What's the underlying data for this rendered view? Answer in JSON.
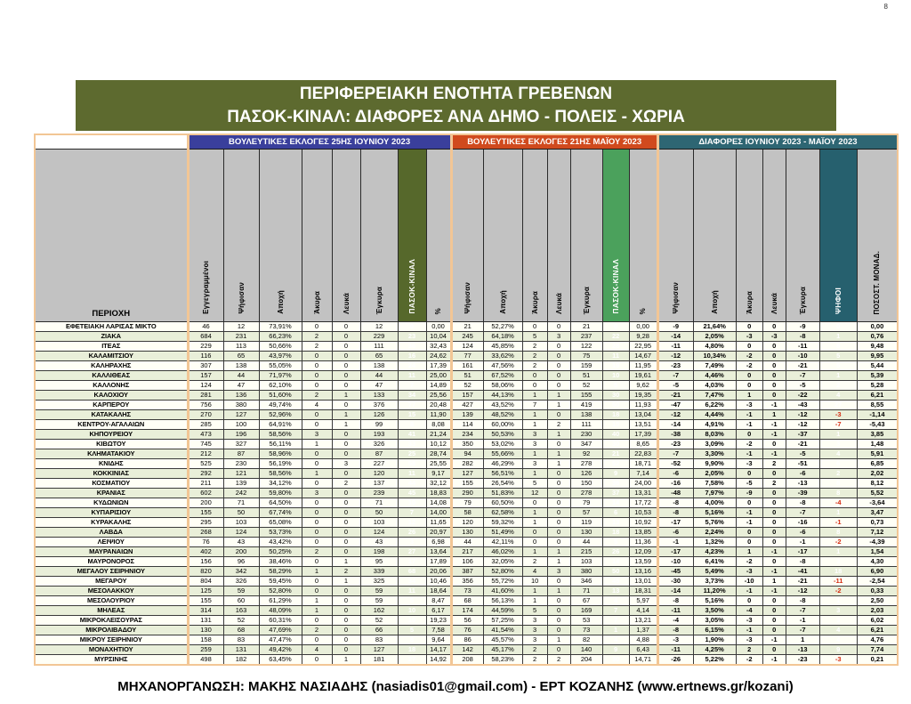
{
  "page": {
    "number": "8"
  },
  "title": {
    "line1": "ΠΕΡΙΦΕΡΕΙΑΚΗ ΕΝΟΤΗΤΑ ΓΡΕΒΕΝΩΝ",
    "line2": "ΠΑΣΟΚ-ΚΙΝΑΛ: ΔΙΑΦΟΡΕΣ ΑΝΑ ΔΗΜΟ - ΠΟΛΕΙΣ - ΧΩΡΙΑ"
  },
  "sections": {
    "june": "ΒΟΥΛΕΥΤΙΚΕΣ ΕΚΛΟΓΕΣ 25ΗΣ ΙΟΥΝΙΟΥ 2023",
    "may": "ΒΟΥΛΕΥΤΙΚΕΣ ΕΚΛΟΓΕΣ 21ΗΣ ΜΑΪΟΥ 2023",
    "diff": "ΔΙΑΦΟΡΕΣ ΙΟΥΝΙΟΥ 2023 - ΜΑΪΟΥ 2023"
  },
  "columns": {
    "area": "ΠΕΡΙΟΧΗ",
    "june": [
      "Εγγεγραμμένοι",
      "Ψήφισαν",
      "Αποχή",
      "Άκυρα",
      "Λευκά",
      "Έγκυρα",
      "ΠΑΣΟΚ-ΚΙΝΑΛ",
      "%"
    ],
    "may": [
      "Ψήφισαν",
      "Αποχή",
      "Άκυρα",
      "Λευκά",
      "Έγκυρα",
      "ΠΑΣΟΚ-ΚΙΝΑΛ",
      "%"
    ],
    "diff": [
      "Ψήφισαν",
      "Αποχή",
      "Άκυρα",
      "Λευκά",
      "Έγκυρα",
      "ΨΗΦΟΙ",
      "ΠΟΣΟΣΤ. ΜΟΝΑΔ."
    ]
  },
  "rows": [
    {
      "name": "ΕΦΕΤΕΙΑΚΗ ΛΑΡΙΣΑΣ ΜΙΚΤΟ",
      "june": [
        "46",
        "12",
        "73,91%",
        "0",
        "0",
        "12",
        "0",
        "0,00"
      ],
      "may": [
        "21",
        "52,27%",
        "0",
        "0",
        "21",
        "0",
        "0,00"
      ],
      "diff": [
        "-9",
        "21,64%",
        "0",
        "0",
        "-9",
        "0",
        "0,00"
      ]
    },
    {
      "name": "ΖΙΑΚΑ",
      "june": [
        "684",
        "231",
        "66,23%",
        "2",
        "0",
        "229",
        "23",
        "10,04"
      ],
      "may": [
        "245",
        "64,18%",
        "5",
        "3",
        "237",
        "22",
        "9,28"
      ],
      "diff": [
        "-14",
        "2,05%",
        "-3",
        "-3",
        "-8",
        "1",
        "0,76"
      ]
    },
    {
      "name": "ΙΤΕΑΣ",
      "june": [
        "229",
        "113",
        "50,66%",
        "2",
        "0",
        "111",
        "36",
        "32,43"
      ],
      "may": [
        "124",
        "45,85%",
        "2",
        "0",
        "122",
        "28",
        "22,95"
      ],
      "diff": [
        "-11",
        "4,80%",
        "0",
        "0",
        "-11",
        "8",
        "9,48"
      ]
    },
    {
      "name": "ΚΑΛΑΜΙΤΣΙΟΥ",
      "june": [
        "116",
        "65",
        "43,97%",
        "0",
        "0",
        "65",
        "16",
        "24,62"
      ],
      "may": [
        "77",
        "33,62%",
        "2",
        "0",
        "75",
        "11",
        "14,67"
      ],
      "diff": [
        "-12",
        "10,34%",
        "-2",
        "0",
        "-10",
        "5",
        "9,95"
      ]
    },
    {
      "name": "ΚΑΛΗΡΑΧΗΣ",
      "june": [
        "307",
        "138",
        "55,05%",
        "0",
        "0",
        "138",
        "24",
        "17,39"
      ],
      "may": [
        "161",
        "47,56%",
        "2",
        "0",
        "159",
        "19",
        "11,95"
      ],
      "diff": [
        "-23",
        "7,49%",
        "-2",
        "0",
        "-21",
        "5",
        "5,44"
      ]
    },
    {
      "name": "ΚΑΛΛΙΘΕΑΣ",
      "june": [
        "157",
        "44",
        "71,97%",
        "0",
        "0",
        "44",
        "11",
        "25,00"
      ],
      "may": [
        "51",
        "67,52%",
        "0",
        "0",
        "51",
        "10",
        "19,61"
      ],
      "diff": [
        "-7",
        "4,46%",
        "0",
        "0",
        "-7",
        "1",
        "5,39"
      ]
    },
    {
      "name": "ΚΑΛΛΟΝΗΣ",
      "june": [
        "124",
        "47",
        "62,10%",
        "0",
        "0",
        "47",
        "7",
        "14,89"
      ],
      "may": [
        "52",
        "58,06%",
        "0",
        "0",
        "52",
        "5",
        "9,62"
      ],
      "diff": [
        "-5",
        "4,03%",
        "0",
        "0",
        "-5",
        "2",
        "5,28"
      ]
    },
    {
      "name": "ΚΑΛΟΧΙΟΥ",
      "june": [
        "281",
        "136",
        "51,60%",
        "2",
        "1",
        "133",
        "34",
        "25,56"
      ],
      "may": [
        "157",
        "44,13%",
        "1",
        "1",
        "155",
        "30",
        "19,35"
      ],
      "diff": [
        "-21",
        "7,47%",
        "1",
        "0",
        "-22",
        "4",
        "6,21"
      ]
    },
    {
      "name": "ΚΑΡΠΕΡΟΥ",
      "june": [
        "756",
        "380",
        "49,74%",
        "4",
        "0",
        "376",
        "77",
        "20,48"
      ],
      "may": [
        "427",
        "43,52%",
        "7",
        "1",
        "419",
        "50",
        "11,93"
      ],
      "diff": [
        "-47",
        "6,22%",
        "-3",
        "-1",
        "-43",
        "27",
        "8,55"
      ]
    },
    {
      "name": "ΚΑΤΑΚΑΛΗΣ",
      "june": [
        "270",
        "127",
        "52,96%",
        "0",
        "1",
        "126",
        "15",
        "11,90"
      ],
      "may": [
        "139",
        "48,52%",
        "1",
        "0",
        "138",
        "18",
        "13,04"
      ],
      "diff": [
        "-12",
        "4,44%",
        "-1",
        "1",
        "-12",
        "-3",
        "-1,14"
      ]
    },
    {
      "name": "ΚΕΝΤΡΟΥ-ΑΓΑΛΑΙΩΝ",
      "june": [
        "285",
        "100",
        "64,91%",
        "0",
        "1",
        "99",
        "8",
        "8,08"
      ],
      "may": [
        "114",
        "60,00%",
        "1",
        "2",
        "111",
        "15",
        "13,51"
      ],
      "diff": [
        "-14",
        "4,91%",
        "-1",
        "-1",
        "-12",
        "-7",
        "-5,43"
      ]
    },
    {
      "name": "ΚΗΠΟΥΡΕΙΟΥ",
      "june": [
        "473",
        "196",
        "58,56%",
        "3",
        "0",
        "193",
        "41",
        "21,24"
      ],
      "may": [
        "234",
        "50,53%",
        "3",
        "1",
        "230",
        "40",
        "17,39"
      ],
      "diff": [
        "-38",
        "8,03%",
        "0",
        "-1",
        "-37",
        "1",
        "3,85"
      ]
    },
    {
      "name": "ΚΙΒΩΤΟΥ",
      "june": [
        "745",
        "327",
        "56,11%",
        "1",
        "0",
        "326",
        "33",
        "10,12"
      ],
      "may": [
        "350",
        "53,02%",
        "3",
        "0",
        "347",
        "30",
        "8,65"
      ],
      "diff": [
        "-23",
        "3,09%",
        "-2",
        "0",
        "-21",
        "3",
        "1,48"
      ]
    },
    {
      "name": "ΚΛΗΜΑΤΑΚΙΟΥ",
      "june": [
        "212",
        "87",
        "58,96%",
        "0",
        "0",
        "87",
        "25",
        "28,74"
      ],
      "may": [
        "94",
        "55,66%",
        "1",
        "1",
        "92",
        "21",
        "22,83"
      ],
      "diff": [
        "-7",
        "3,30%",
        "-1",
        "-1",
        "-5",
        "4",
        "5,91"
      ]
    },
    {
      "name": "ΚΝΙΔΗΣ",
      "june": [
        "525",
        "230",
        "56,19%",
        "0",
        "3",
        "227",
        "58",
        "25,55"
      ],
      "may": [
        "282",
        "46,29%",
        "3",
        "1",
        "278",
        "52",
        "18,71"
      ],
      "diff": [
        "-52",
        "9,90%",
        "-3",
        "2",
        "-51",
        "6",
        "6,85"
      ]
    },
    {
      "name": "ΚΟΚΚΙΝΙΑΣ",
      "june": [
        "292",
        "121",
        "58,56%",
        "1",
        "0",
        "120",
        "11",
        "9,17"
      ],
      "may": [
        "127",
        "56,51%",
        "1",
        "0",
        "126",
        "9",
        "7,14"
      ],
      "diff": [
        "-6",
        "2,05%",
        "0",
        "0",
        "-6",
        "2",
        "2,02"
      ]
    },
    {
      "name": "ΚΟΣΜΑΤΙΟΥ",
      "june": [
        "211",
        "139",
        "34,12%",
        "0",
        "2",
        "137",
        "44",
        "32,12"
      ],
      "may": [
        "155",
        "26,54%",
        "5",
        "0",
        "150",
        "36",
        "24,00"
      ],
      "diff": [
        "-16",
        "7,58%",
        "-5",
        "2",
        "-13",
        "8",
        "8,12"
      ]
    },
    {
      "name": "ΚΡΑΝΙΑΣ",
      "june": [
        "602",
        "242",
        "59,80%",
        "3",
        "0",
        "239",
        "45",
        "18,83"
      ],
      "may": [
        "290",
        "51,83%",
        "12",
        "0",
        "278",
        "37",
        "13,31"
      ],
      "diff": [
        "-48",
        "7,97%",
        "-9",
        "0",
        "-39",
        "8",
        "5,52"
      ]
    },
    {
      "name": "ΚΥΔΩΝΙΩΝ",
      "june": [
        "200",
        "71",
        "64,50%",
        "0",
        "0",
        "71",
        "10",
        "14,08"
      ],
      "may": [
        "79",
        "60,50%",
        "0",
        "0",
        "79",
        "14",
        "17,72"
      ],
      "diff": [
        "-8",
        "4,00%",
        "0",
        "0",
        "-8",
        "-4",
        "-3,64"
      ]
    },
    {
      "name": "ΚΥΠΑΡΙΣΙΟΥ",
      "june": [
        "155",
        "50",
        "67,74%",
        "0",
        "0",
        "50",
        "7",
        "14,00"
      ],
      "may": [
        "58",
        "62,58%",
        "1",
        "0",
        "57",
        "6",
        "10,53"
      ],
      "diff": [
        "-8",
        "5,16%",
        "-1",
        "0",
        "-7",
        "1",
        "3,47"
      ]
    },
    {
      "name": "ΚΥΡΑΚΑΛΗΣ",
      "june": [
        "295",
        "103",
        "65,08%",
        "0",
        "0",
        "103",
        "12",
        "11,65"
      ],
      "may": [
        "120",
        "59,32%",
        "1",
        "0",
        "119",
        "13",
        "10,92"
      ],
      "diff": [
        "-17",
        "5,76%",
        "-1",
        "0",
        "-16",
        "-1",
        "0,73"
      ]
    },
    {
      "name": "ΛΑΒΔΑ",
      "june": [
        "268",
        "124",
        "53,73%",
        "0",
        "0",
        "124",
        "26",
        "20,97"
      ],
      "may": [
        "130",
        "51,49%",
        "0",
        "0",
        "130",
        "18",
        "13,85"
      ],
      "diff": [
        "-6",
        "2,24%",
        "0",
        "0",
        "-6",
        "8",
        "7,12"
      ]
    },
    {
      "name": "ΛΕΙΨΙΟΥ",
      "june": [
        "76",
        "43",
        "43,42%",
        "0",
        "0",
        "43",
        "3",
        "6,98"
      ],
      "may": [
        "44",
        "42,11%",
        "0",
        "0",
        "44",
        "5",
        "11,36"
      ],
      "diff": [
        "-1",
        "1,32%",
        "0",
        "0",
        "-1",
        "-2",
        "-4,39"
      ]
    },
    {
      "name": "ΜΑΥΡΑΝΑΙΩΝ",
      "june": [
        "402",
        "200",
        "50,25%",
        "2",
        "0",
        "198",
        "27",
        "13,64"
      ],
      "may": [
        "217",
        "46,02%",
        "1",
        "1",
        "215",
        "26",
        "12,09"
      ],
      "diff": [
        "-17",
        "4,23%",
        "1",
        "-1",
        "-17",
        "1",
        "1,54"
      ]
    },
    {
      "name": "ΜΑΥΡΟΝΟΡΟΣ",
      "june": [
        "156",
        "96",
        "38,46%",
        "0",
        "1",
        "95",
        "17",
        "17,89"
      ],
      "may": [
        "106",
        "32,05%",
        "2",
        "1",
        "103",
        "14",
        "13,59"
      ],
      "diff": [
        "-10",
        "6,41%",
        "-2",
        "0",
        "-8",
        "3",
        "4,30"
      ]
    },
    {
      "name": "ΜΕΓΑΛΟΥ ΣΕΙΡΗΝΙΟΥ",
      "june": [
        "820",
        "342",
        "58,29%",
        "1",
        "2",
        "339",
        "68",
        "20,06"
      ],
      "may": [
        "387",
        "52,80%",
        "4",
        "3",
        "380",
        "50",
        "13,16"
      ],
      "diff": [
        "-45",
        "5,49%",
        "-3",
        "-1",
        "-41",
        "18",
        "6,90"
      ]
    },
    {
      "name": "ΜΕΓΑΡΟΥ",
      "june": [
        "804",
        "326",
        "59,45%",
        "0",
        "1",
        "325",
        "34",
        "10,46"
      ],
      "may": [
        "356",
        "55,72%",
        "10",
        "0",
        "346",
        "45",
        "13,01"
      ],
      "diff": [
        "-30",
        "3,73%",
        "-10",
        "1",
        "-21",
        "-11",
        "-2,54"
      ]
    },
    {
      "name": "ΜΕΣΟΛΑΚΚΟΥ",
      "june": [
        "125",
        "59",
        "52,80%",
        "0",
        "0",
        "59",
        "11",
        "18,64"
      ],
      "may": [
        "73",
        "41,60%",
        "1",
        "1",
        "71",
        "13",
        "18,31"
      ],
      "diff": [
        "-14",
        "11,20%",
        "-1",
        "-1",
        "-12",
        "-2",
        "0,33"
      ]
    },
    {
      "name": "ΜΕΣΟΛΟΥΡΙΟΥ",
      "june": [
        "155",
        "60",
        "61,29%",
        "1",
        "0",
        "59",
        "5",
        "8,47"
      ],
      "may": [
        "68",
        "56,13%",
        "1",
        "0",
        "67",
        "4",
        "5,97"
      ],
      "diff": [
        "-8",
        "5,16%",
        "0",
        "0",
        "-8",
        "1",
        "2,50"
      ]
    },
    {
      "name": "ΜΗΛΕΑΣ",
      "june": [
        "314",
        "163",
        "48,09%",
        "1",
        "0",
        "162",
        "10",
        "6,17"
      ],
      "may": [
        "174",
        "44,59%",
        "5",
        "0",
        "169",
        "7",
        "4,14"
      ],
      "diff": [
        "-11",
        "3,50%",
        "-4",
        "0",
        "-7",
        "3",
        "2,03"
      ]
    },
    {
      "name": "ΜΙΚΡΟΚΛΕΙΣΟΥΡΑΣ",
      "june": [
        "131",
        "52",
        "60,31%",
        "0",
        "0",
        "52",
        "10",
        "19,23"
      ],
      "may": [
        "56",
        "57,25%",
        "3",
        "0",
        "53",
        "7",
        "13,21"
      ],
      "diff": [
        "-4",
        "3,05%",
        "-3",
        "0",
        "-1",
        "3",
        "6,02"
      ]
    },
    {
      "name": "ΜΙΚΡΟΛΙΒΑΔΟΥ",
      "june": [
        "130",
        "68",
        "47,69%",
        "2",
        "0",
        "66",
        "5",
        "7,58"
      ],
      "may": [
        "76",
        "41,54%",
        "3",
        "0",
        "73",
        "1",
        "1,37"
      ],
      "diff": [
        "-8",
        "6,15%",
        "-1",
        "0",
        "-7",
        "4",
        "6,21"
      ]
    },
    {
      "name": "ΜΙΚΡΟΥ ΣΕΙΡΗΝΙΟΥ",
      "june": [
        "158",
        "83",
        "47,47%",
        "0",
        "0",
        "83",
        "8",
        "9,64"
      ],
      "may": [
        "86",
        "45,57%",
        "3",
        "1",
        "82",
        "4",
        "4,88"
      ],
      "diff": [
        "-3",
        "1,90%",
        "-3",
        "-1",
        "1",
        "4",
        "4,76"
      ]
    },
    {
      "name": "ΜΟΝΑΧΗΤΙΟΥ",
      "june": [
        "259",
        "131",
        "49,42%",
        "4",
        "0",
        "127",
        "18",
        "14,17"
      ],
      "may": [
        "142",
        "45,17%",
        "2",
        "0",
        "140",
        "9",
        "6,43"
      ],
      "diff": [
        "-11",
        "4,25%",
        "2",
        "0",
        "-13",
        "9",
        "7,74"
      ]
    },
    {
      "name": "ΜΥΡΣΙΝΗΣ",
      "june": [
        "498",
        "182",
        "63,45%",
        "0",
        "1",
        "181",
        "27",
        "14,92"
      ],
      "may": [
        "208",
        "58,23%",
        "2",
        "2",
        "204",
        "30",
        "14,71"
      ],
      "diff": [
        "-26",
        "5,22%",
        "-2",
        "-1",
        "-23",
        "-3",
        "0,21"
      ]
    }
  ],
  "footer": "ΜΗΧΑΝΟΡΓΑΝΩΣΗ: ΜΑΚΗΣ ΝΑΣΙΑΔΗΣ (nasiadis01@gmail.com) - ΕΡΤ ΚΟΖΑΝΗΣ (www.ertnews.gr/kozani)",
  "colors": {
    "title_bg": "#5d6a2f",
    "june_band": "#3a3f9c",
    "may_band": "#d04a1e",
    "diff_band": "#2e6673",
    "june_pasok_col": "#56682b",
    "may_pasok_col": "#4ba15c",
    "votes_col": "#26606e",
    "header_gray": "#c2c2c2",
    "row_even": "#e9efd9",
    "frame_tan": "#f2c695",
    "negative_on_teal": "#d42a10"
  }
}
